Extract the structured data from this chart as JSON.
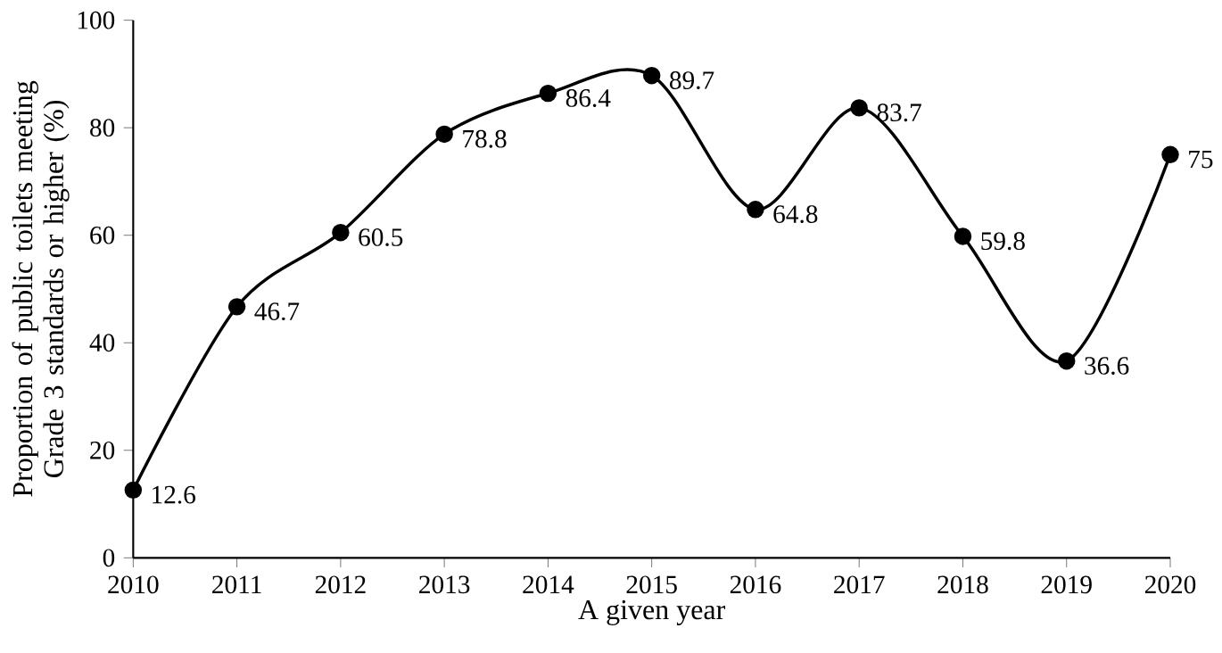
{
  "chart_data": {
    "type": "line",
    "xlabel": "A given year",
    "ylabel": "Proportion of public toilets meeting Grade 3 standards or higher (%)",
    "x": [
      2010,
      2011,
      2012,
      2013,
      2014,
      2015,
      2016,
      2017,
      2018,
      2019,
      2020
    ],
    "values": [
      12.6,
      46.7,
      60.5,
      78.8,
      86.4,
      89.7,
      64.8,
      83.7,
      59.8,
      36.6,
      75
    ],
    "color": "#000000",
    "marker": "circle",
    "line_style": "solid",
    "data_labels": true,
    "xlim": [
      2010,
      2020
    ],
    "xticks": [
      2010,
      2011,
      2012,
      2013,
      2014,
      2015,
      2016,
      2017,
      2018,
      2019,
      2020
    ],
    "ylim": [
      0,
      100
    ],
    "yticks": [
      0,
      20,
      40,
      60,
      80,
      100
    ]
  }
}
